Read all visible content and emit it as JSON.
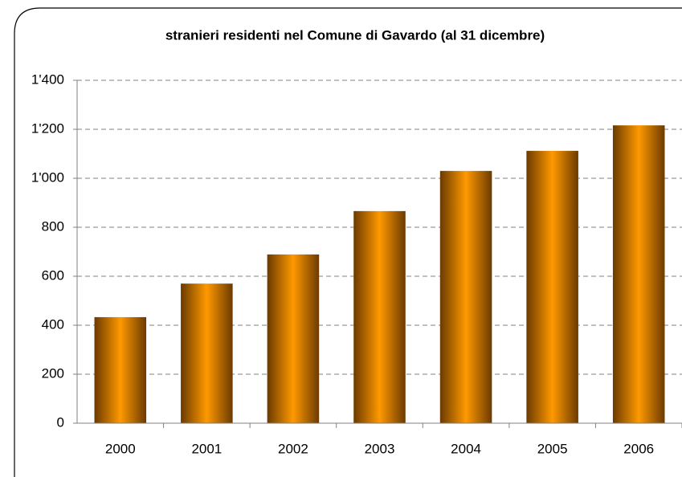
{
  "chart_data": {
    "type": "bar",
    "title": "stranieri residenti nel Comune di Gavardo (al 31 dicembre)",
    "categories": [
      "2000",
      "2001",
      "2002",
      "2003",
      "2004",
      "2005",
      "2006"
    ],
    "values": [
      433,
      570,
      689,
      866,
      1030,
      1112,
      1216
    ],
    "color": "#ff9900",
    "ylim": [
      0,
      1400
    ],
    "yticks": [
      0,
      200,
      400,
      600,
      800,
      {
        "value": 1000,
        "label": "1'000"
      },
      {
        "value": 1200,
        "label": "1'200"
      },
      {
        "value": 1400,
        "label": "1'400"
      }
    ],
    "grid": true
  }
}
